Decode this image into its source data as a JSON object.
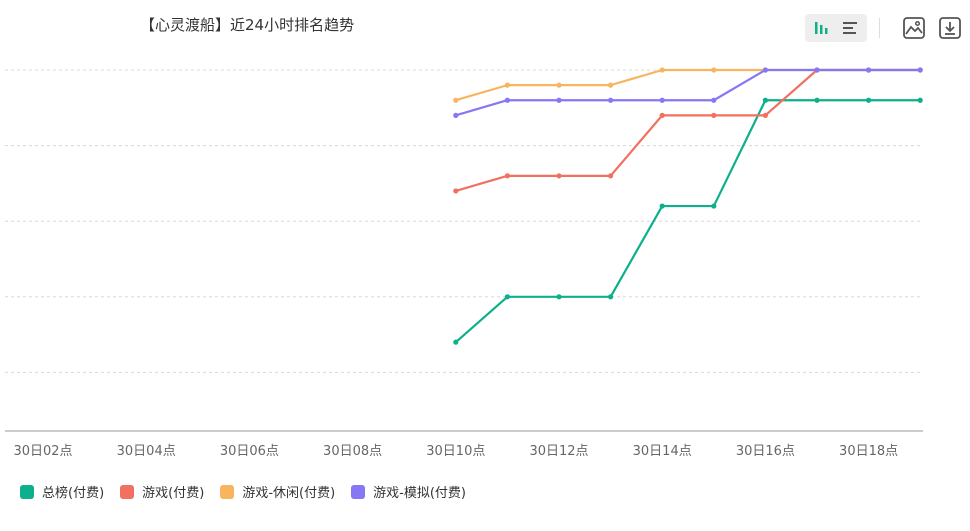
{
  "chart_data": {
    "type": "line",
    "title": "【心灵渡船】近24小时排名趋势",
    "categories": [
      "30日02点",
      "30日03点",
      "30日04点",
      "30日05点",
      "30日06点",
      "30日07点",
      "30日08点",
      "30日09点",
      "30日10点",
      "30日11点",
      "30日12点",
      "30日13点",
      "30日14点",
      "30日15点",
      "30日16点",
      "30日17点",
      "30日18点",
      "30日19点"
    ],
    "x_tick_labels": [
      "30日02点",
      "30日04点",
      "30日06点",
      "30日08点",
      "30日10点",
      "30日12点",
      "30日14点",
      "30日16点",
      "30日18点"
    ],
    "y_axis_visible": false,
    "ylim": [
      1,
      6
    ],
    "y_inverted": true,
    "grid": true,
    "legend_position": "bottom-left",
    "series": [
      {
        "name": "总榜(付费)",
        "color": "#0db08b",
        "values": [
          null,
          null,
          null,
          null,
          null,
          null,
          null,
          null,
          4.6,
          4.0,
          4.0,
          4.0,
          2.8,
          2.8,
          1.4,
          1.4,
          1.4,
          1.4
        ]
      },
      {
        "name": "游戏(付费)",
        "color": "#f1705f",
        "values": [
          null,
          null,
          null,
          null,
          null,
          null,
          null,
          null,
          2.6,
          2.4,
          2.4,
          2.4,
          1.6,
          1.6,
          1.6,
          1.0,
          1.0,
          1.0
        ]
      },
      {
        "name": "游戏-休闲(付费)",
        "color": "#f8b45f",
        "values": [
          null,
          null,
          null,
          null,
          null,
          null,
          null,
          null,
          1.4,
          1.2,
          1.2,
          1.2,
          1.0,
          1.0,
          1.0,
          1.0,
          1.0,
          1.0
        ]
      },
      {
        "name": "游戏-模拟(付费)",
        "color": "#8677f5",
        "values": [
          null,
          null,
          null,
          null,
          null,
          null,
          null,
          null,
          1.6,
          1.4,
          1.4,
          1.4,
          1.4,
          1.4,
          1.0,
          1.0,
          1.0,
          1.0
        ]
      }
    ]
  },
  "toolbar": {
    "icons": [
      "line-chart-icon",
      "bar-list-icon",
      "image-download-icon",
      "download-icon"
    ],
    "accent_color": "#0db08b"
  }
}
